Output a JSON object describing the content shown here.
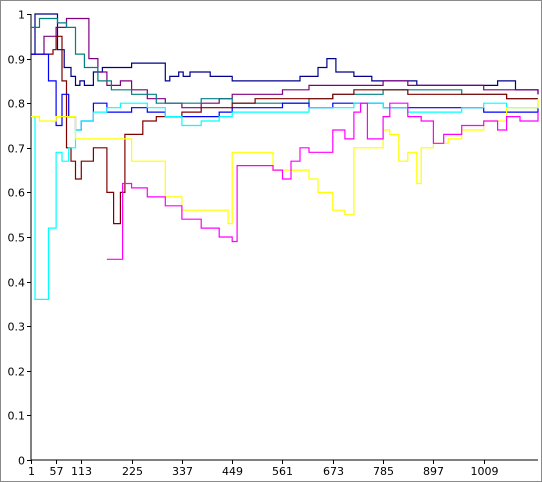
{
  "chart_data": {
    "type": "line",
    "title": "",
    "xlabel": "",
    "ylabel": "",
    "xlim": [
      1,
      1130
    ],
    "ylim": [
      0,
      1
    ],
    "grid": false,
    "legend": "none",
    "x_ticks": [
      1,
      57,
      113,
      225,
      337,
      449,
      561,
      673,
      785,
      897,
      1009
    ],
    "x_tick_labels": [
      "1",
      "57",
      "113",
      "225",
      "337",
      "449",
      "561",
      "673",
      "785",
      "897",
      "1009"
    ],
    "y_ticks": [
      0,
      0.1,
      0.2,
      0.3,
      0.4,
      0.5,
      0.6,
      0.7,
      0.8,
      0.9,
      1
    ],
    "y_tick_labels": [
      "0",
      "0.1",
      "0.2",
      "0.3",
      "0.4",
      "0.5",
      "0.6",
      "0.7",
      "0.8",
      "0.9",
      "1"
    ],
    "series": [
      {
        "color": "#00008b",
        "points": [
          [
            1,
            0.91
          ],
          [
            10,
            1.0
          ],
          [
            20,
            1.0
          ],
          [
            30,
            1.0
          ],
          [
            40,
            1.0
          ],
          [
            60,
            0.92
          ],
          [
            75,
            0.88
          ],
          [
            90,
            0.86
          ],
          [
            100,
            0.84
          ],
          [
            110,
            0.85
          ],
          [
            120,
            0.84
          ],
          [
            140,
            0.87
          ],
          [
            160,
            0.88
          ],
          [
            180,
            0.88
          ],
          [
            200,
            0.88
          ],
          [
            225,
            0.89
          ],
          [
            250,
            0.89
          ],
          [
            290,
            0.89
          ],
          [
            300,
            0.85
          ],
          [
            310,
            0.86
          ],
          [
            330,
            0.87
          ],
          [
            340,
            0.86
          ],
          [
            355,
            0.87
          ],
          [
            380,
            0.87
          ],
          [
            400,
            0.86
          ],
          [
            449,
            0.85
          ],
          [
            500,
            0.85
          ],
          [
            561,
            0.85
          ],
          [
            600,
            0.86
          ],
          [
            640,
            0.88
          ],
          [
            660,
            0.9
          ],
          [
            680,
            0.87
          ],
          [
            720,
            0.86
          ],
          [
            760,
            0.85
          ],
          [
            800,
            0.85
          ],
          [
            860,
            0.84
          ],
          [
            920,
            0.84
          ],
          [
            980,
            0.84
          ],
          [
            1040,
            0.85
          ],
          [
            1080,
            0.83
          ],
          [
            1130,
            0.82
          ]
        ]
      },
      {
        "color": "#800080",
        "points": [
          [
            1,
            0.91
          ],
          [
            30,
            0.95
          ],
          [
            57,
            0.97
          ],
          [
            80,
            0.99
          ],
          [
            113,
            0.99
          ],
          [
            130,
            0.9
          ],
          [
            150,
            0.87
          ],
          [
            170,
            0.84
          ],
          [
            200,
            0.85
          ],
          [
            225,
            0.83
          ],
          [
            260,
            0.81
          ],
          [
            300,
            0.8
          ],
          [
            337,
            0.79
          ],
          [
            380,
            0.8
          ],
          [
            420,
            0.81
          ],
          [
            449,
            0.82
          ],
          [
            500,
            0.82
          ],
          [
            561,
            0.83
          ],
          [
            620,
            0.84
          ],
          [
            673,
            0.84
          ],
          [
            720,
            0.84
          ],
          [
            785,
            0.85
          ],
          [
            840,
            0.84
          ],
          [
            897,
            0.84
          ],
          [
            960,
            0.84
          ],
          [
            1009,
            0.83
          ],
          [
            1060,
            0.83
          ],
          [
            1130,
            0.82
          ]
        ]
      },
      {
        "color": "#008080",
        "points": [
          [
            1,
            0.97
          ],
          [
            20,
            0.99
          ],
          [
            40,
            0.99
          ],
          [
            60,
            0.98
          ],
          [
            80,
            0.97
          ],
          [
            100,
            0.91
          ],
          [
            120,
            0.88
          ],
          [
            150,
            0.85
          ],
          [
            180,
            0.83
          ],
          [
            225,
            0.82
          ],
          [
            280,
            0.8
          ],
          [
            337,
            0.8
          ],
          [
            380,
            0.81
          ],
          [
            449,
            0.8
          ],
          [
            500,
            0.8
          ],
          [
            561,
            0.8
          ],
          [
            620,
            0.81
          ],
          [
            673,
            0.82
          ],
          [
            720,
            0.82
          ],
          [
            785,
            0.83
          ],
          [
            840,
            0.83
          ],
          [
            897,
            0.83
          ],
          [
            960,
            0.82
          ],
          [
            1009,
            0.82
          ],
          [
            1060,
            0.81
          ],
          [
            1130,
            0.81
          ]
        ]
      },
      {
        "color": "#800000",
        "points": [
          [
            1,
            0.91
          ],
          [
            50,
            0.92
          ],
          [
            57,
            0.95
          ],
          [
            70,
            0.85
          ],
          [
            80,
            0.7
          ],
          [
            90,
            0.67
          ],
          [
            100,
            0.63
          ],
          [
            113,
            0.67
          ],
          [
            140,
            0.7
          ],
          [
            170,
            0.6
          ],
          [
            185,
            0.53
          ],
          [
            200,
            0.6
          ],
          [
            210,
            0.73
          ],
          [
            225,
            0.73
          ],
          [
            250,
            0.76
          ],
          [
            280,
            0.77
          ],
          [
            337,
            0.78
          ],
          [
            380,
            0.79
          ],
          [
            449,
            0.8
          ],
          [
            500,
            0.81
          ],
          [
            561,
            0.81
          ],
          [
            620,
            0.81
          ],
          [
            673,
            0.82
          ],
          [
            720,
            0.83
          ],
          [
            785,
            0.83
          ],
          [
            840,
            0.82
          ],
          [
            897,
            0.82
          ],
          [
            960,
            0.82
          ],
          [
            1009,
            0.82
          ],
          [
            1060,
            0.81
          ],
          [
            1130,
            0.81
          ]
        ]
      },
      {
        "color": "#0000ff",
        "points": [
          [
            1,
            0.91
          ],
          [
            40,
            0.85
          ],
          [
            57,
            0.75
          ],
          [
            70,
            0.82
          ],
          [
            85,
            0.77
          ],
          [
            100,
            0.74
          ],
          [
            113,
            0.76
          ],
          [
            140,
            0.8
          ],
          [
            170,
            0.78
          ],
          [
            200,
            0.78
          ],
          [
            225,
            0.79
          ],
          [
            260,
            0.78
          ],
          [
            300,
            0.77
          ],
          [
            337,
            0.77
          ],
          [
            380,
            0.77
          ],
          [
            420,
            0.78
          ],
          [
            449,
            0.79
          ],
          [
            500,
            0.79
          ],
          [
            561,
            0.8
          ],
          [
            620,
            0.79
          ],
          [
            673,
            0.8
          ],
          [
            720,
            0.8
          ],
          [
            785,
            0.79
          ],
          [
            840,
            0.79
          ],
          [
            897,
            0.79
          ],
          [
            960,
            0.79
          ],
          [
            1009,
            0.78
          ],
          [
            1060,
            0.78
          ],
          [
            1130,
            0.79
          ]
        ]
      },
      {
        "color": "#00ffff",
        "points": [
          [
            1,
            0.77
          ],
          [
            10,
            0.36
          ],
          [
            20,
            0.36
          ],
          [
            40,
            0.52
          ],
          [
            57,
            0.69
          ],
          [
            70,
            0.67
          ],
          [
            85,
            0.7
          ],
          [
            100,
            0.74
          ],
          [
            113,
            0.76
          ],
          [
            140,
            0.78
          ],
          [
            170,
            0.79
          ],
          [
            200,
            0.8
          ],
          [
            225,
            0.8
          ],
          [
            260,
            0.79
          ],
          [
            300,
            0.77
          ],
          [
            337,
            0.75
          ],
          [
            380,
            0.76
          ],
          [
            420,
            0.77
          ],
          [
            449,
            0.78
          ],
          [
            500,
            0.78
          ],
          [
            561,
            0.78
          ],
          [
            620,
            0.79
          ],
          [
            673,
            0.79
          ],
          [
            720,
            0.8
          ],
          [
            785,
            0.79
          ],
          [
            840,
            0.78
          ],
          [
            897,
            0.78
          ],
          [
            960,
            0.79
          ],
          [
            1009,
            0.8
          ],
          [
            1060,
            0.79
          ],
          [
            1130,
            0.8
          ]
        ]
      },
      {
        "color": "#ffff00",
        "points": [
          [
            1,
            0.77
          ],
          [
            20,
            0.76
          ],
          [
            57,
            0.77
          ],
          [
            80,
            0.77
          ],
          [
            100,
            0.72
          ],
          [
            113,
            0.72
          ],
          [
            150,
            0.72
          ],
          [
            200,
            0.72
          ],
          [
            225,
            0.67
          ],
          [
            260,
            0.67
          ],
          [
            300,
            0.59
          ],
          [
            337,
            0.56
          ],
          [
            380,
            0.56
          ],
          [
            420,
            0.56
          ],
          [
            440,
            0.53
          ],
          [
            449,
            0.69
          ],
          [
            500,
            0.69
          ],
          [
            540,
            0.65
          ],
          [
            561,
            0.65
          ],
          [
            600,
            0.65
          ],
          [
            620,
            0.63
          ],
          [
            640,
            0.6
          ],
          [
            673,
            0.56
          ],
          [
            700,
            0.55
          ],
          [
            720,
            0.7
          ],
          [
            760,
            0.7
          ],
          [
            785,
            0.74
          ],
          [
            800,
            0.73
          ],
          [
            820,
            0.67
          ],
          [
            840,
            0.69
          ],
          [
            860,
            0.62
          ],
          [
            870,
            0.7
          ],
          [
            897,
            0.71
          ],
          [
            930,
            0.72
          ],
          [
            960,
            0.74
          ],
          [
            1009,
            0.76
          ],
          [
            1060,
            0.79
          ],
          [
            1130,
            0.81
          ]
        ]
      },
      {
        "color": "#ff00ff",
        "points": [
          [
            170,
            0.45
          ],
          [
            195,
            0.45
          ],
          [
            205,
            0.62
          ],
          [
            225,
            0.61
          ],
          [
            260,
            0.59
          ],
          [
            300,
            0.57
          ],
          [
            337,
            0.54
          ],
          [
            380,
            0.52
          ],
          [
            420,
            0.5
          ],
          [
            449,
            0.49
          ],
          [
            460,
            0.66
          ],
          [
            500,
            0.66
          ],
          [
            540,
            0.65
          ],
          [
            561,
            0.63
          ],
          [
            580,
            0.67
          ],
          [
            600,
            0.7
          ],
          [
            620,
            0.69
          ],
          [
            640,
            0.69
          ],
          [
            673,
            0.74
          ],
          [
            700,
            0.72
          ],
          [
            720,
            0.78
          ],
          [
            735,
            0.8
          ],
          [
            750,
            0.72
          ],
          [
            770,
            0.72
          ],
          [
            785,
            0.77
          ],
          [
            800,
            0.8
          ],
          [
            840,
            0.77
          ],
          [
            870,
            0.76
          ],
          [
            897,
            0.71
          ],
          [
            920,
            0.73
          ],
          [
            960,
            0.75
          ],
          [
            1009,
            0.76
          ],
          [
            1040,
            0.74
          ],
          [
            1060,
            0.77
          ],
          [
            1090,
            0.76
          ],
          [
            1130,
            0.78
          ]
        ]
      }
    ]
  }
}
